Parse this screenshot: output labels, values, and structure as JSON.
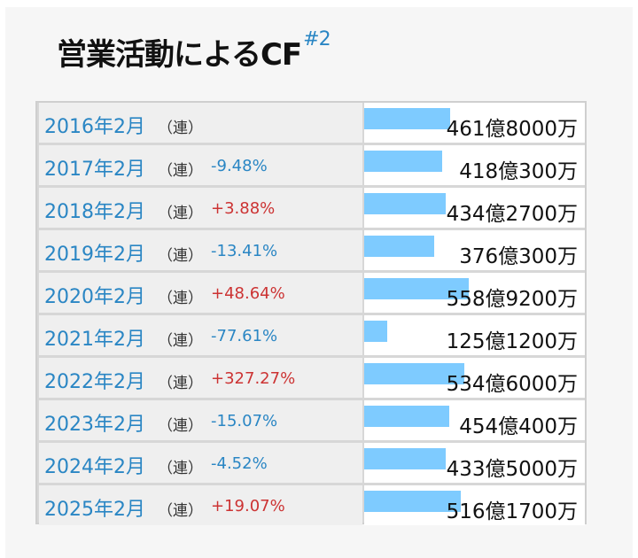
{
  "title": {
    "main": "営業活動によるCF",
    "footnote": "#2"
  },
  "ren_label": "（連）",
  "colors": {
    "year_text": "#2a86c4",
    "negative_change": "#2a86c4",
    "positive_change": "#cc3333",
    "bar_fill": "#7ecbff",
    "left_cell_bg": "#efefef"
  },
  "rows": [
    {
      "year": "2016年2月",
      "change": "",
      "value": "461億8000万",
      "amount_oku": 461.8
    },
    {
      "year": "2017年2月",
      "change": "-9.48%",
      "value": "418億300万",
      "amount_oku": 418.03
    },
    {
      "year": "2018年2月",
      "change": "+3.88%",
      "value": "434億2700万",
      "amount_oku": 434.27
    },
    {
      "year": "2019年2月",
      "change": "-13.41%",
      "value": "376億300万",
      "amount_oku": 376.03
    },
    {
      "year": "2020年2月",
      "change": "+48.64%",
      "value": "558億9200万",
      "amount_oku": 558.92
    },
    {
      "year": "2021年2月",
      "change": "-77.61%",
      "value": "125億1200万",
      "amount_oku": 125.12
    },
    {
      "year": "2022年2月",
      "change": "+327.27%",
      "value": "534億6000万",
      "amount_oku": 534.6
    },
    {
      "year": "2023年2月",
      "change": "-15.07%",
      "value": "454億400万",
      "amount_oku": 454.04
    },
    {
      "year": "2024年2月",
      "change": "-4.52%",
      "value": "433億5000万",
      "amount_oku": 433.5
    },
    {
      "year": "2025年2月",
      "change": "+19.07%",
      "value": "516億1700万",
      "amount_oku": 516.17
    }
  ]
}
